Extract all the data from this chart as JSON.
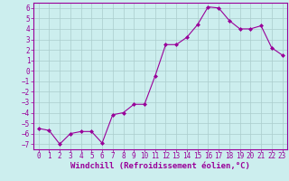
{
  "x": [
    0,
    1,
    2,
    3,
    4,
    5,
    6,
    7,
    8,
    9,
    10,
    11,
    12,
    13,
    14,
    15,
    16,
    17,
    18,
    19,
    20,
    21,
    22,
    23
  ],
  "y": [
    -5.5,
    -5.7,
    -7.0,
    -6.0,
    -5.8,
    -5.8,
    -6.9,
    -4.2,
    -4.0,
    -3.2,
    -3.2,
    -0.5,
    2.5,
    2.5,
    3.2,
    4.4,
    6.1,
    6.0,
    4.8,
    4.0,
    4.0,
    4.3,
    2.2,
    1.5
  ],
  "line_color": "#990099",
  "marker": "D",
  "marker_size": 2,
  "bg_color": "#cceeee",
  "grid_color": "#aacccc",
  "xlabel": "Windchill (Refroidissement éolien,°C)",
  "xlabel_fontsize": 6.5,
  "tick_fontsize": 5.5,
  "ylim": [
    -7.5,
    6.5
  ],
  "xlim": [
    -0.5,
    23.5
  ],
  "yticks": [
    6,
    5,
    4,
    3,
    2,
    1,
    0,
    -1,
    -2,
    -3,
    -4,
    -5,
    -6,
    -7
  ],
  "xticks": [
    0,
    1,
    2,
    3,
    4,
    5,
    6,
    7,
    8,
    9,
    10,
    11,
    12,
    13,
    14,
    15,
    16,
    17,
    18,
    19,
    20,
    21,
    22,
    23
  ]
}
